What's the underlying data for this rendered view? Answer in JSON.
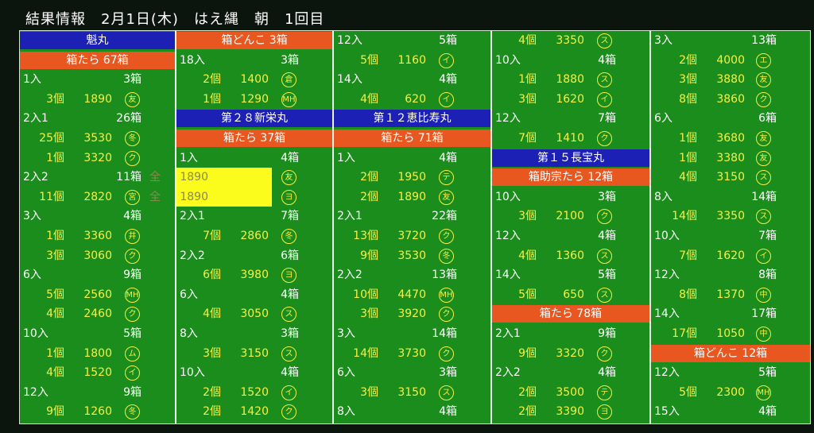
{
  "header": {
    "title": "結果情報　2月1日(木)　はえ縄　朝　1回目"
  },
  "columns": [
    [
      {
        "kind": "ship",
        "text": "魁丸"
      },
      {
        "kind": "catch",
        "text": "箱たら 67箱"
      },
      {
        "kind": "lot",
        "label": "1入",
        "boxes": "3箱"
      },
      {
        "kind": "bid",
        "count": "3個",
        "price": 1890,
        "mark": "友"
      },
      {
        "kind": "lot",
        "label": "2入1",
        "boxes": "26箱"
      },
      {
        "kind": "bid",
        "count": "25個",
        "price": 3530,
        "mark": "冬"
      },
      {
        "kind": "bid",
        "count": "1個",
        "price": 3320,
        "mark": "ク"
      },
      {
        "kind": "lot",
        "label": "2入2",
        "boxes": "11箱"
      },
      {
        "kind": "bid",
        "count": "11個",
        "price": 2820,
        "mark": "宮"
      },
      {
        "kind": "lot",
        "label": "3入",
        "boxes": "4箱"
      },
      {
        "kind": "bid",
        "count": "1個",
        "price": 3360,
        "mark": "井"
      },
      {
        "kind": "bid",
        "count": "3個",
        "price": 3060,
        "mark": "ク"
      },
      {
        "kind": "lot",
        "label": "6入",
        "boxes": "9箱"
      },
      {
        "kind": "bid",
        "count": "5個",
        "price": 2560,
        "mark": "MH"
      },
      {
        "kind": "bid",
        "count": "4個",
        "price": 2460,
        "mark": "ク"
      },
      {
        "kind": "lot",
        "label": "10入",
        "boxes": "5箱"
      },
      {
        "kind": "bid",
        "count": "1個",
        "price": 1800,
        "mark": "ム"
      },
      {
        "kind": "bid",
        "count": "4個",
        "price": 1520,
        "mark": "イ"
      },
      {
        "kind": "lot",
        "label": "12入",
        "boxes": "9箱"
      },
      {
        "kind": "bid",
        "count": "9個",
        "price": 1260,
        "mark": "冬"
      }
    ],
    [
      {
        "kind": "catch",
        "text": "箱どんこ 3箱"
      },
      {
        "kind": "lot",
        "label": "18入",
        "boxes": "3箱"
      },
      {
        "kind": "bid",
        "count": "2個",
        "price": 1400,
        "mark": "倉"
      },
      {
        "kind": "bid",
        "count": "1個",
        "price": 1290,
        "mark": "MH"
      },
      {
        "kind": "ship",
        "text": "第２８新栄丸"
      },
      {
        "kind": "catch",
        "text": "箱たら 37箱"
      },
      {
        "kind": "lot",
        "label": "1入",
        "boxes": "4箱"
      },
      {
        "kind": "bid",
        "count": "全",
        "price": 1890,
        "mark": "友",
        "highlight": true
      },
      {
        "kind": "bid",
        "count": "全",
        "price": 1890,
        "mark": "ヨ",
        "highlight": true
      },
      {
        "kind": "lot",
        "label": "2入1",
        "boxes": "7箱"
      },
      {
        "kind": "bid",
        "count": "7個",
        "price": 2860,
        "mark": "冬"
      },
      {
        "kind": "lot",
        "label": "2入2",
        "boxes": "6箱"
      },
      {
        "kind": "bid",
        "count": "6個",
        "price": 3980,
        "mark": "ヨ"
      },
      {
        "kind": "lot",
        "label": "6入",
        "boxes": "4箱"
      },
      {
        "kind": "bid",
        "count": "4個",
        "price": 3050,
        "mark": "ス"
      },
      {
        "kind": "lot",
        "label": "8入",
        "boxes": "3箱"
      },
      {
        "kind": "bid",
        "count": "3個",
        "price": 3150,
        "mark": "ス"
      },
      {
        "kind": "lot",
        "label": "10入",
        "boxes": "4箱"
      },
      {
        "kind": "bid",
        "count": "2個",
        "price": 1520,
        "mark": "イ"
      },
      {
        "kind": "bid",
        "count": "2個",
        "price": 1420,
        "mark": "ク"
      }
    ],
    [
      {
        "kind": "lot",
        "label": "12入",
        "boxes": "5箱"
      },
      {
        "kind": "bid",
        "count": "5個",
        "price": 1160,
        "mark": "イ"
      },
      {
        "kind": "lot",
        "label": "14入",
        "boxes": "4箱"
      },
      {
        "kind": "bid",
        "count": "4個",
        "price": 620,
        "mark": "イ"
      },
      {
        "kind": "ship",
        "text": "第１２恵比寿丸"
      },
      {
        "kind": "catch",
        "text": "箱たら 71箱"
      },
      {
        "kind": "lot",
        "label": "1入",
        "boxes": "4箱"
      },
      {
        "kind": "bid",
        "count": "2個",
        "price": 1950,
        "mark": "テ"
      },
      {
        "kind": "bid",
        "count": "2個",
        "price": 1890,
        "mark": "友"
      },
      {
        "kind": "lot",
        "label": "2入1",
        "boxes": "22箱"
      },
      {
        "kind": "bid",
        "count": "13個",
        "price": 3720,
        "mark": "ク"
      },
      {
        "kind": "bid",
        "count": "9個",
        "price": 3530,
        "mark": "冬"
      },
      {
        "kind": "lot",
        "label": "2入2",
        "boxes": "13箱"
      },
      {
        "kind": "bid",
        "count": "10個",
        "price": 4470,
        "mark": "MH"
      },
      {
        "kind": "bid",
        "count": "3個",
        "price": 3920,
        "mark": "ク"
      },
      {
        "kind": "lot",
        "label": "3入",
        "boxes": "14箱"
      },
      {
        "kind": "bid",
        "count": "14個",
        "price": 3730,
        "mark": "ク"
      },
      {
        "kind": "lot",
        "label": "6入",
        "boxes": "3箱"
      },
      {
        "kind": "bid",
        "count": "3個",
        "price": 3150,
        "mark": "ス"
      },
      {
        "kind": "lot",
        "label": "8入",
        "boxes": "4箱"
      }
    ],
    [
      {
        "kind": "bid",
        "count": "4個",
        "price": 3350,
        "mark": "ス"
      },
      {
        "kind": "lot",
        "label": "10入",
        "boxes": "4箱"
      },
      {
        "kind": "bid",
        "count": "1個",
        "price": 1880,
        "mark": "ス"
      },
      {
        "kind": "bid",
        "count": "3個",
        "price": 1620,
        "mark": "イ"
      },
      {
        "kind": "lot",
        "label": "12入",
        "boxes": "7箱"
      },
      {
        "kind": "bid",
        "count": "7個",
        "price": 1410,
        "mark": "ク"
      },
      {
        "kind": "ship",
        "text": "第１５長宝丸"
      },
      {
        "kind": "catch",
        "text": "箱助宗たら 12箱"
      },
      {
        "kind": "lot",
        "label": "10入",
        "boxes": "3箱"
      },
      {
        "kind": "bid",
        "count": "3個",
        "price": 2100,
        "mark": "ク"
      },
      {
        "kind": "lot",
        "label": "12入",
        "boxes": "4箱"
      },
      {
        "kind": "bid",
        "count": "4個",
        "price": 1360,
        "mark": "ス"
      },
      {
        "kind": "lot",
        "label": "14入",
        "boxes": "5箱"
      },
      {
        "kind": "bid",
        "count": "5個",
        "price": 650,
        "mark": "ス"
      },
      {
        "kind": "catch",
        "text": "箱たら 78箱"
      },
      {
        "kind": "lot",
        "label": "2入1",
        "boxes": "9箱"
      },
      {
        "kind": "bid",
        "count": "9個",
        "price": 3320,
        "mark": "ク"
      },
      {
        "kind": "lot",
        "label": "2入2",
        "boxes": "4箱"
      },
      {
        "kind": "bid",
        "count": "2個",
        "price": 3500,
        "mark": "テ"
      },
      {
        "kind": "bid",
        "count": "2個",
        "price": 3390,
        "mark": "ヨ"
      }
    ],
    [
      {
        "kind": "lot",
        "label": "3入",
        "boxes": "13箱"
      },
      {
        "kind": "bid",
        "count": "2個",
        "price": 4000,
        "mark": "エ"
      },
      {
        "kind": "bid",
        "count": "3個",
        "price": 3880,
        "mark": "友"
      },
      {
        "kind": "bid",
        "count": "8個",
        "price": 3860,
        "mark": "ク"
      },
      {
        "kind": "lot",
        "label": "6入",
        "boxes": "6箱"
      },
      {
        "kind": "bid",
        "count": "1個",
        "price": 3680,
        "mark": "友"
      },
      {
        "kind": "bid",
        "count": "1個",
        "price": 3380,
        "mark": "友"
      },
      {
        "kind": "bid",
        "count": "4個",
        "price": 3150,
        "mark": "ス"
      },
      {
        "kind": "lot",
        "label": "8入",
        "boxes": "14箱"
      },
      {
        "kind": "bid",
        "count": "14個",
        "price": 3350,
        "mark": "ス"
      },
      {
        "kind": "lot",
        "label": "10入",
        "boxes": "7箱"
      },
      {
        "kind": "bid",
        "count": "7個",
        "price": 1620,
        "mark": "イ"
      },
      {
        "kind": "lot",
        "label": "12入",
        "boxes": "8箱"
      },
      {
        "kind": "bid",
        "count": "8個",
        "price": 1370,
        "mark": "中"
      },
      {
        "kind": "lot",
        "label": "14入",
        "boxes": "17箱"
      },
      {
        "kind": "bid",
        "count": "17個",
        "price": 1050,
        "mark": "中"
      },
      {
        "kind": "catch",
        "text": "箱どんこ 12箱"
      },
      {
        "kind": "lot",
        "label": "12入",
        "boxes": "5箱"
      },
      {
        "kind": "bid",
        "count": "5個",
        "price": 2300,
        "mark": "MH"
      },
      {
        "kind": "lot",
        "label": "15入",
        "boxes": "4箱"
      }
    ]
  ]
}
